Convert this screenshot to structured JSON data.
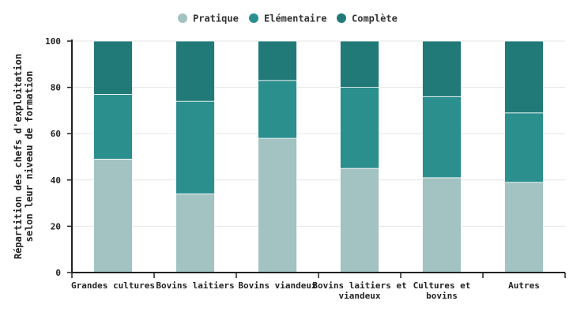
{
  "chart_data": {
    "type": "bar",
    "stacked": true,
    "categories": [
      [
        "Grandes cultures"
      ],
      [
        "Bovins laitiers"
      ],
      [
        "Bovins viandeux"
      ],
      [
        "Bovins laitiers et",
        "viandeux"
      ],
      [
        "Cultures et",
        "bovins"
      ],
      [
        "Autres"
      ]
    ],
    "series": [
      {
        "name": "Pratique",
        "color": "#a3c2c2",
        "values": [
          49,
          34,
          58,
          45,
          41,
          39
        ]
      },
      {
        "name": "Elémentaire",
        "color": "#2b8f8e",
        "values": [
          28,
          40,
          25,
          35,
          35,
          30
        ]
      },
      {
        "name": "Complète",
        "color": "#227a78",
        "values": [
          23,
          26,
          17,
          20,
          24,
          31
        ]
      }
    ],
    "ylabel": [
      "Répartition des chefs d'exploitation",
      "selon leur niveau de formation"
    ],
    "ylim": [
      0,
      100
    ],
    "yticks": [
      0,
      20,
      40,
      60,
      80,
      100
    ],
    "grid": true,
    "legend_position": "top"
  }
}
